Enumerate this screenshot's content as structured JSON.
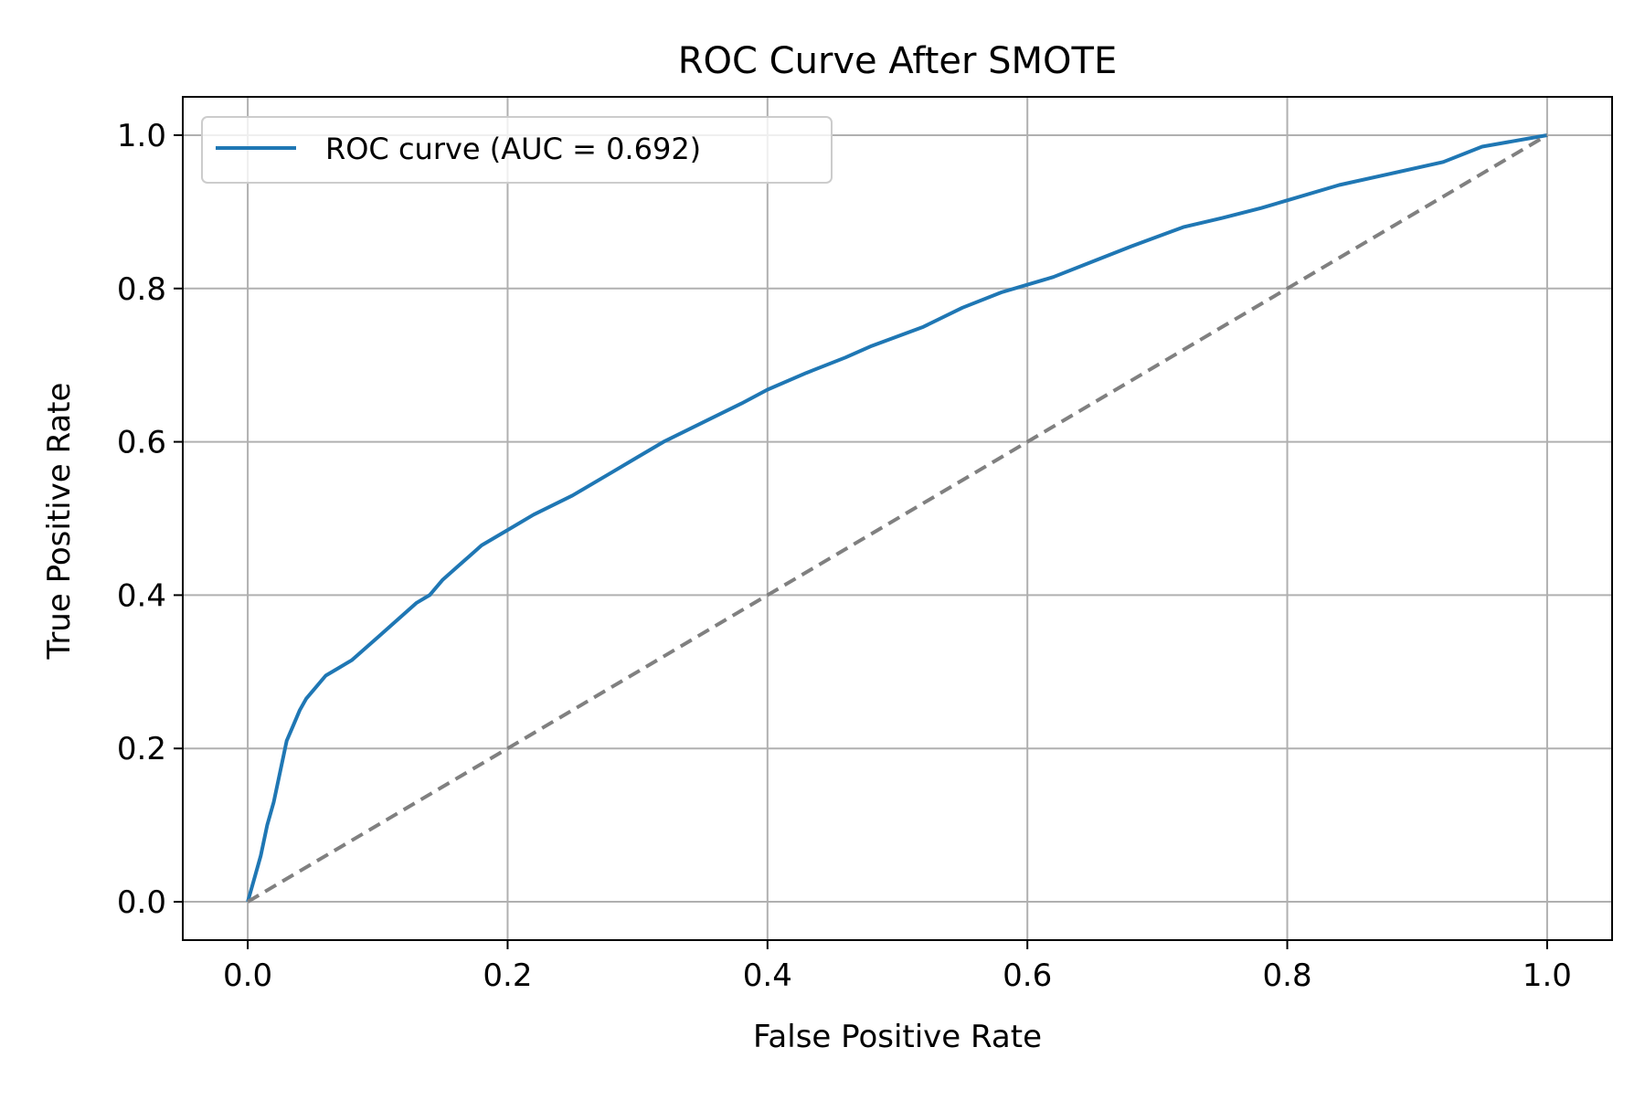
{
  "chart_data": {
    "type": "line",
    "title": "ROC Curve After SMOTE",
    "xlabel": "False Positive Rate",
    "ylabel": "True Positive Rate",
    "xlim": [
      -0.05,
      1.05
    ],
    "ylim": [
      -0.05,
      1.05
    ],
    "grid": true,
    "legend_position": "top-left",
    "x_ticks": [
      "0.0",
      "0.2",
      "0.4",
      "0.6",
      "0.8",
      "1.0"
    ],
    "y_ticks": [
      "0.0",
      "0.2",
      "0.4",
      "0.6",
      "0.8",
      "1.0"
    ],
    "x_tick_values": [
      0.0,
      0.2,
      0.4,
      0.6,
      0.8,
      1.0
    ],
    "y_tick_values": [
      0.0,
      0.2,
      0.4,
      0.6,
      0.8,
      1.0
    ],
    "series": [
      {
        "name": "ROC curve (AUC = 0.692)",
        "color": "#1f77b4",
        "x": [
          0.0,
          0.005,
          0.01,
          0.015,
          0.02,
          0.025,
          0.03,
          0.035,
          0.04,
          0.045,
          0.05,
          0.06,
          0.07,
          0.08,
          0.09,
          0.1,
          0.11,
          0.12,
          0.13,
          0.14,
          0.15,
          0.16,
          0.17,
          0.18,
          0.2,
          0.22,
          0.25,
          0.28,
          0.3,
          0.32,
          0.35,
          0.38,
          0.4,
          0.43,
          0.46,
          0.48,
          0.52,
          0.55,
          0.58,
          0.62,
          0.65,
          0.68,
          0.72,
          0.75,
          0.78,
          0.8,
          0.84,
          0.88,
          0.92,
          0.95,
          1.0
        ],
        "y": [
          0.0,
          0.03,
          0.06,
          0.1,
          0.13,
          0.17,
          0.21,
          0.23,
          0.25,
          0.265,
          0.275,
          0.295,
          0.305,
          0.315,
          0.33,
          0.345,
          0.36,
          0.375,
          0.39,
          0.4,
          0.42,
          0.435,
          0.45,
          0.465,
          0.485,
          0.505,
          0.53,
          0.56,
          0.58,
          0.6,
          0.625,
          0.65,
          0.668,
          0.69,
          0.71,
          0.725,
          0.75,
          0.775,
          0.795,
          0.815,
          0.835,
          0.855,
          0.88,
          0.892,
          0.905,
          0.915,
          0.935,
          0.95,
          0.965,
          0.985,
          1.0
        ]
      },
      {
        "name": "",
        "color": "#808080",
        "dashed": true,
        "x": [
          0.0,
          1.0
        ],
        "y": [
          0.0,
          1.0
        ]
      }
    ]
  }
}
